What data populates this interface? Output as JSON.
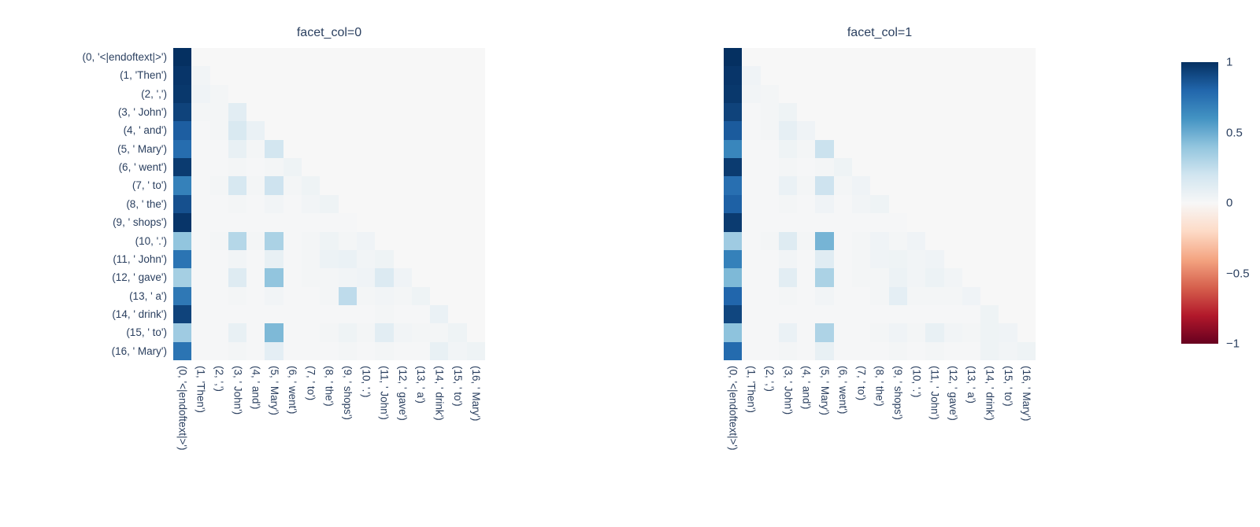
{
  "chart_data": {
    "type": "heatmap",
    "description": "Two faceted attention-pattern heatmaps over the same token sequence, shared RdBu colorbar",
    "x_labels": [
      "(0, '<|endoftext|>')",
      "(1, 'Then')",
      "(2, ',')",
      "(3, ' John')",
      "(4, ' and')",
      "(5, ' Mary')",
      "(6, ' went')",
      "(7, ' to')",
      "(8, ' the')",
      "(9, ' shops')",
      "(10, '.')",
      "(11, ' John')",
      "(12, ' gave')",
      "(13, ' a')",
      "(14, ' drink')",
      "(15, ' to')",
      "(16, ' Mary')"
    ],
    "y_labels": [
      "(0, '<|endoftext|>')",
      "(1, 'Then')",
      "(2, ',')",
      "(3, ' John')",
      "(4, ' and')",
      "(5, ' Mary')",
      "(6, ' went')",
      "(7, ' to')",
      "(8, ' the')",
      "(9, ' shops')",
      "(10, '.')",
      "(11, ' John')",
      "(12, ' gave')",
      "(13, ' a')",
      "(14, ' drink')",
      "(15, ' to')",
      "(16, ' Mary')"
    ],
    "zmin": -1,
    "zmax": 1,
    "colorscale_name": "RdBu",
    "colorscale": [
      [
        -1.0,
        "#67001f"
      ],
      [
        -0.8,
        "#b2182b"
      ],
      [
        -0.6,
        "#d6604d"
      ],
      [
        -0.4,
        "#f4a582"
      ],
      [
        -0.2,
        "#fddbc7"
      ],
      [
        0.0,
        "#f7f7f7"
      ],
      [
        0.2,
        "#d1e5f0"
      ],
      [
        0.4,
        "#92c5de"
      ],
      [
        0.6,
        "#4393c3"
      ],
      [
        0.8,
        "#2166ac"
      ],
      [
        1.0,
        "#053061"
      ]
    ],
    "grid": false,
    "legend_position": "right",
    "facets": [
      {
        "title": "facet_col=0",
        "z": [
          [
            1.0,
            0,
            0,
            0,
            0,
            0,
            0,
            0,
            0,
            0,
            0,
            0,
            0,
            0,
            0,
            0,
            0
          ],
          [
            0.98,
            0.03,
            0,
            0,
            0,
            0,
            0,
            0,
            0,
            0,
            0,
            0,
            0,
            0,
            0,
            0,
            0
          ],
          [
            0.97,
            0.04,
            0.02,
            0,
            0,
            0,
            0,
            0,
            0,
            0,
            0,
            0,
            0,
            0,
            0,
            0,
            0
          ],
          [
            0.93,
            0.02,
            0.02,
            0.11,
            0,
            0,
            0,
            0,
            0,
            0,
            0,
            0,
            0,
            0,
            0,
            0,
            0
          ],
          [
            0.83,
            0.01,
            0.02,
            0.16,
            0.07,
            0,
            0,
            0,
            0,
            0,
            0,
            0,
            0,
            0,
            0,
            0,
            0
          ],
          [
            0.77,
            0.01,
            0.01,
            0.08,
            0.02,
            0.19,
            0,
            0,
            0,
            0,
            0,
            0,
            0,
            0,
            0,
            0,
            0
          ],
          [
            0.96,
            0.01,
            0.01,
            0.02,
            0.01,
            0.02,
            0.05,
            0,
            0,
            0,
            0,
            0,
            0,
            0,
            0,
            0,
            0
          ],
          [
            0.68,
            0.01,
            0.02,
            0.17,
            0.02,
            0.21,
            0.02,
            0.05,
            0,
            0,
            0,
            0,
            0,
            0,
            0,
            0,
            0
          ],
          [
            0.88,
            0.01,
            0.01,
            0.02,
            0.01,
            0.03,
            0.01,
            0.03,
            0.05,
            0,
            0,
            0,
            0,
            0,
            0,
            0,
            0
          ],
          [
            0.98,
            0.01,
            0.01,
            0.01,
            0.01,
            0.01,
            0.01,
            0.01,
            0.01,
            0.01,
            0,
            0,
            0,
            0,
            0,
            0,
            0
          ],
          [
            0.4,
            0.01,
            0.02,
            0.29,
            0.02,
            0.32,
            0.01,
            0.02,
            0.05,
            0.02,
            0.04,
            0,
            0,
            0,
            0,
            0,
            0
          ],
          [
            0.74,
            0.01,
            0.01,
            0.03,
            0.01,
            0.08,
            0.01,
            0.02,
            0.06,
            0.07,
            0.03,
            0.05,
            0,
            0,
            0,
            0,
            0
          ],
          [
            0.34,
            0.01,
            0.01,
            0.13,
            0.01,
            0.4,
            0.01,
            0.02,
            0.02,
            0.03,
            0.04,
            0.14,
            0.04,
            0,
            0,
            0,
            0
          ],
          [
            0.72,
            0.01,
            0.01,
            0.02,
            0.01,
            0.03,
            0.01,
            0.01,
            0.02,
            0.26,
            0.02,
            0.03,
            0.02,
            0.05,
            0,
            0,
            0
          ],
          [
            0.93,
            0.01,
            0.01,
            0.01,
            0.01,
            0.01,
            0.01,
            0.01,
            0.01,
            0.01,
            0.01,
            0.02,
            0.01,
            0.01,
            0.07,
            0,
            0
          ],
          [
            0.36,
            0.01,
            0.01,
            0.08,
            0.01,
            0.45,
            0.01,
            0.01,
            0.02,
            0.05,
            0.02,
            0.11,
            0.03,
            0.02,
            0.02,
            0.05,
            0
          ],
          [
            0.74,
            0.01,
            0.01,
            0.02,
            0.01,
            0.1,
            0.01,
            0.01,
            0.01,
            0.02,
            0.01,
            0.02,
            0.01,
            0.01,
            0.08,
            0.03,
            0.05
          ]
        ]
      },
      {
        "title": "facet_col=1",
        "z": [
          [
            1.0,
            0,
            0,
            0,
            0,
            0,
            0,
            0,
            0,
            0,
            0,
            0,
            0,
            0,
            0,
            0,
            0
          ],
          [
            0.98,
            0.04,
            0,
            0,
            0,
            0,
            0,
            0,
            0,
            0,
            0,
            0,
            0,
            0,
            0,
            0,
            0
          ],
          [
            0.97,
            0.03,
            0.02,
            0,
            0,
            0,
            0,
            0,
            0,
            0,
            0,
            0,
            0,
            0,
            0,
            0,
            0
          ],
          [
            0.93,
            0.01,
            0.02,
            0.05,
            0,
            0,
            0,
            0,
            0,
            0,
            0,
            0,
            0,
            0,
            0,
            0,
            0
          ],
          [
            0.84,
            0.01,
            0.02,
            0.09,
            0.04,
            0,
            0,
            0,
            0,
            0,
            0,
            0,
            0,
            0,
            0,
            0,
            0
          ],
          [
            0.66,
            0.01,
            0.01,
            0.05,
            0.02,
            0.22,
            0,
            0,
            0,
            0,
            0,
            0,
            0,
            0,
            0,
            0,
            0
          ],
          [
            0.96,
            0.01,
            0.01,
            0.02,
            0.01,
            0.02,
            0.05,
            0,
            0,
            0,
            0,
            0,
            0,
            0,
            0,
            0,
            0
          ],
          [
            0.76,
            0.01,
            0.01,
            0.07,
            0.02,
            0.21,
            0.02,
            0.04,
            0,
            0,
            0,
            0,
            0,
            0,
            0,
            0,
            0
          ],
          [
            0.82,
            0.01,
            0.01,
            0.02,
            0.01,
            0.04,
            0.01,
            0.03,
            0.05,
            0,
            0,
            0,
            0,
            0,
            0,
            0,
            0
          ],
          [
            0.96,
            0.01,
            0.01,
            0.01,
            0.01,
            0.01,
            0.01,
            0.01,
            0.01,
            0.01,
            0,
            0,
            0,
            0,
            0,
            0,
            0
          ],
          [
            0.36,
            0.01,
            0.02,
            0.13,
            0.02,
            0.47,
            0.01,
            0.02,
            0.04,
            0.02,
            0.04,
            0,
            0,
            0,
            0,
            0,
            0
          ],
          [
            0.68,
            0.01,
            0.01,
            0.03,
            0.01,
            0.12,
            0.01,
            0.02,
            0.04,
            0.05,
            0.03,
            0.04,
            0,
            0,
            0,
            0,
            0
          ],
          [
            0.45,
            0.01,
            0.01,
            0.11,
            0.01,
            0.32,
            0.01,
            0.02,
            0.02,
            0.06,
            0.03,
            0.06,
            0.03,
            0,
            0,
            0,
            0
          ],
          [
            0.8,
            0.01,
            0.01,
            0.02,
            0.01,
            0.03,
            0.01,
            0.01,
            0.02,
            0.1,
            0.02,
            0.02,
            0.02,
            0.04,
            0,
            0,
            0
          ],
          [
            0.92,
            0.01,
            0.01,
            0.01,
            0.01,
            0.01,
            0.01,
            0.01,
            0.01,
            0.01,
            0.01,
            0.01,
            0.01,
            0.01,
            0.05,
            0,
            0
          ],
          [
            0.41,
            0.01,
            0.01,
            0.07,
            0.01,
            0.31,
            0.01,
            0.01,
            0.02,
            0.04,
            0.02,
            0.08,
            0.03,
            0.02,
            0.05,
            0.04,
            0
          ],
          [
            0.78,
            0.01,
            0.01,
            0.02,
            0.01,
            0.08,
            0.01,
            0.01,
            0.01,
            0.02,
            0.01,
            0.02,
            0.01,
            0.01,
            0.05,
            0.03,
            0.05
          ]
        ]
      }
    ],
    "colorbar": {
      "ticks": [
        {
          "label": "1",
          "value": 1
        },
        {
          "label": "0.5",
          "value": 0.5
        },
        {
          "label": "0",
          "value": 0
        },
        {
          "label": "−0.5",
          "value": -0.5
        },
        {
          "label": "−1",
          "value": -1
        }
      ]
    }
  },
  "style": {
    "text_color": "#2a3f5f",
    "background_color": "#ffffff"
  }
}
